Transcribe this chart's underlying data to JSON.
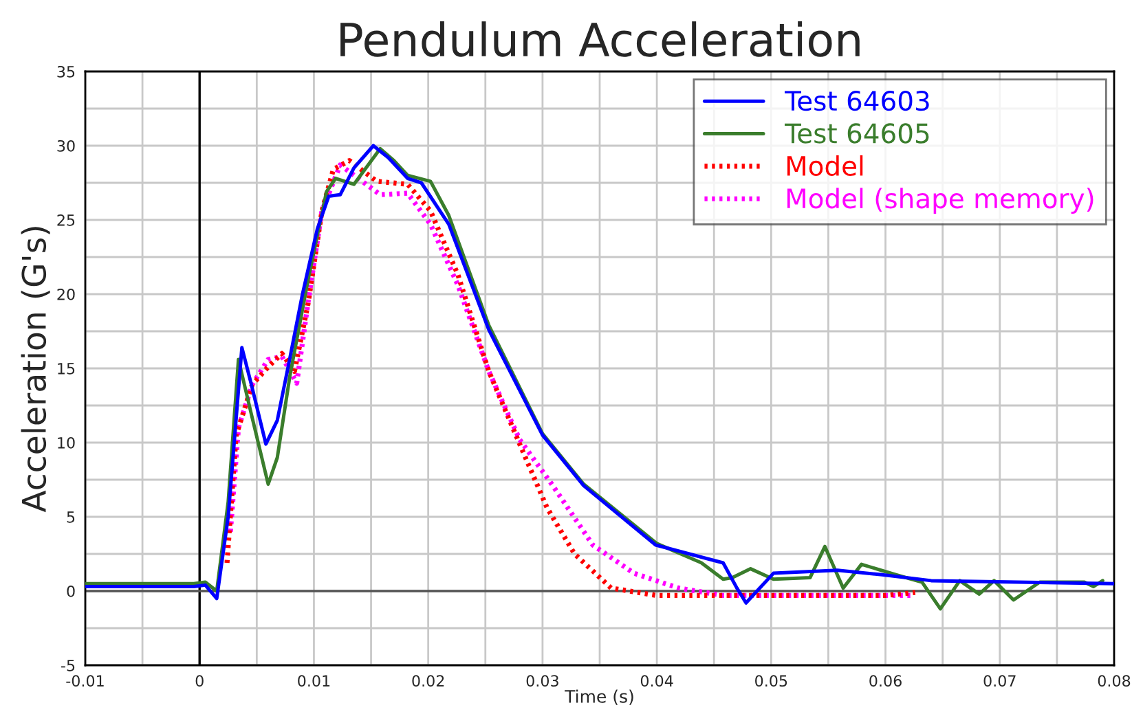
{
  "chart_data": {
    "type": "line",
    "title": "Pendulum Acceleration",
    "xlabel": "Time (s)",
    "ylabel": "Acceleration (G's)",
    "xlim": [
      -0.01,
      0.08
    ],
    "ylim": [
      -5,
      35
    ],
    "xticks": [
      -0.01,
      0,
      0.01,
      0.02,
      0.03,
      0.04,
      0.05,
      0.06,
      0.07,
      0.08
    ],
    "yticks": [
      -5,
      0,
      5,
      10,
      15,
      20,
      25,
      30,
      35
    ],
    "grid": true,
    "legend": "top right",
    "marker": "none",
    "ref_lines": [
      {
        "axis": "x",
        "value": 0,
        "color": "#000000"
      },
      {
        "axis": "y",
        "value": 0,
        "color": "#555555"
      }
    ],
    "series": [
      {
        "name": "Test 64603",
        "color": "#0000ff",
        "line_style": "solid",
        "x": [
          -0.01,
          -0.0005,
          0.0005,
          0.0015,
          0.0025,
          0.0037,
          0.0045,
          0.0058,
          0.0068,
          0.0079,
          0.009,
          0.0103,
          0.0113,
          0.0123,
          0.0135,
          0.0152,
          0.0165,
          0.0182,
          0.0194,
          0.0218,
          0.0253,
          0.03,
          0.0336,
          0.0399,
          0.0458,
          0.047,
          0.0478,
          0.0502,
          0.0558,
          0.0597,
          0.064,
          0.08
        ],
        "values": [
          0.3,
          0.3,
          0.4,
          -0.5,
          5,
          16.4,
          14,
          9.9,
          11.5,
          15.7,
          20,
          24.4,
          26.6,
          26.7,
          28.5,
          30,
          29.2,
          27.8,
          27.5,
          24.7,
          17.6,
          10.5,
          7.1,
          3.1,
          1.9,
          0.2,
          -0.8,
          1.2,
          1.4,
          1.1,
          0.7,
          0.5
        ]
      },
      {
        "name": "Test 64605",
        "color": "#3a7d2c",
        "line_style": "solid",
        "x": [
          -0.01,
          -0.0005,
          0.0005,
          0.0015,
          0.0025,
          0.0034,
          0.0045,
          0.006,
          0.0068,
          0.0079,
          0.0095,
          0.0111,
          0.0119,
          0.0135,
          0.0158,
          0.017,
          0.0182,
          0.0202,
          0.0218,
          0.0253,
          0.03,
          0.0336,
          0.04,
          0.0439,
          0.0458,
          0.0466,
          0.0482,
          0.0502,
          0.0534,
          0.0547,
          0.0563,
          0.0579,
          0.0609,
          0.0632,
          0.0648,
          0.0665,
          0.0682,
          0.0695,
          0.0712,
          0.0735,
          0.0774,
          0.0782,
          0.079
        ],
        "values": [
          0.5,
          0.5,
          0.6,
          0,
          6,
          15.6,
          12,
          7.2,
          9,
          14.5,
          21,
          26.9,
          27.8,
          27.4,
          29.8,
          29,
          28,
          27.6,
          25.3,
          17.9,
          10.6,
          7.2,
          3.2,
          1.9,
          0.8,
          0.9,
          1.5,
          0.8,
          0.9,
          3.0,
          0.2,
          1.8,
          1.1,
          0.6,
          -1.2,
          0.7,
          -0.2,
          0.7,
          -0.6,
          0.6,
          0.6,
          0.3,
          0.7
        ]
      },
      {
        "name": "Model",
        "color": "#ff0000",
        "line_style": "dotted",
        "x": [
          0.0024,
          0.0032,
          0.0046,
          0.006,
          0.0072,
          0.0083,
          0.0095,
          0.0107,
          0.0117,
          0.0131,
          0.0155,
          0.0182,
          0.0202,
          0.0226,
          0.0253,
          0.028,
          0.0304,
          0.0328,
          0.036,
          0.04,
          0.05,
          0.06,
          0.0626
        ],
        "values": [
          1.9,
          10.5,
          13.9,
          15.1,
          16,
          14.8,
          19.4,
          25.6,
          28.4,
          29,
          27.6,
          27.4,
          25.6,
          21.3,
          14.8,
          9.9,
          5.6,
          2.5,
          0.2,
          -0.3,
          -0.3,
          -0.3,
          -0.1
        ]
      },
      {
        "name": "Model (shape memory)",
        "color": "#ff00ff",
        "line_style": "dotted",
        "x": [
          0.0027,
          0.0034,
          0.0046,
          0.006,
          0.0072,
          0.0085,
          0.0095,
          0.0107,
          0.0123,
          0.0158,
          0.0182,
          0.0202,
          0.0226,
          0.0253,
          0.028,
          0.0309,
          0.0344,
          0.038,
          0.0419,
          0.0458,
          0.05,
          0.06,
          0.0625
        ],
        "values": [
          4,
          11,
          13.9,
          15.6,
          15.8,
          14,
          19.5,
          25.6,
          28.7,
          26.7,
          26.8,
          24.7,
          20.6,
          14.8,
          10.2,
          7.1,
          3.1,
          1.2,
          0.2,
          -0.3,
          -0.3,
          -0.3,
          -0.3
        ]
      }
    ]
  }
}
